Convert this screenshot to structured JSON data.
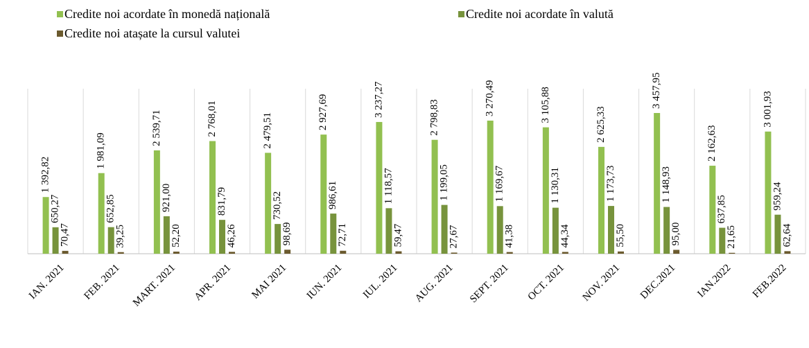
{
  "chart_data": {
    "type": "bar",
    "categories": [
      "IAN. 2021",
      "FEB. 2021",
      "MART. 2021",
      "APR. 2021",
      "MAI 2021",
      "IUN. 2021",
      "IUL. 2021",
      "AUG. 2021",
      "SEPT. 2021",
      "OCT. 2021",
      "NOV. 2021",
      "DEC.2021",
      "IAN.2022",
      "FEB.2022"
    ],
    "legend": "top",
    "series": [
      {
        "name": "Credite noi acordate în monedă națională",
        "color": "#92c050",
        "values": [
          1392.82,
          1981.09,
          2539.71,
          2768.01,
          2479.51,
          2927.69,
          3237.27,
          2798.83,
          3270.49,
          3105.88,
          2625.33,
          3457.95,
          2162.63,
          3001.93
        ],
        "value_labels": [
          "1 392,82",
          "1 981,09",
          "2 539,71",
          "2 768,01",
          "2 479,51",
          "2 927,69",
          "3 237,27",
          "2 798,83",
          "3 270,49",
          "3 105,88",
          "2 625,33",
          "3 457,95",
          "2 162,63",
          "3 001,93"
        ]
      },
      {
        "name": "Credite noi acordate în valută",
        "color": "#77933c",
        "values": [
          650.27,
          652.85,
          921.0,
          831.79,
          730.52,
          986.61,
          1118.57,
          1199.05,
          1169.67,
          1130.31,
          1173.73,
          1148.93,
          637.85,
          959.24
        ],
        "value_labels": [
          "650,27",
          "652,85",
          "921,00",
          "831,79",
          "730,52",
          "986,61",
          "1 118,57",
          "1 199,05",
          "1 169,67",
          "1 130,31",
          "1 173,73",
          "1 148,93",
          "637,85",
          "959,24"
        ]
      },
      {
        "name": "Credite noi atașate la cursul valutei",
        "color": "#6b5a2e",
        "values": [
          70.47,
          39.25,
          52.2,
          46.26,
          98.69,
          72.71,
          59.47,
          27.67,
          41.38,
          44.34,
          55.5,
          95.0,
          21.65,
          62.64
        ],
        "value_labels": [
          "70,47",
          "39,25",
          "52,20",
          "46,26",
          "98,69",
          "72,71",
          "59,47",
          "27,67",
          "41,38",
          "44,34",
          "55,50",
          "95,00",
          "21,65",
          "62,64"
        ]
      }
    ]
  }
}
